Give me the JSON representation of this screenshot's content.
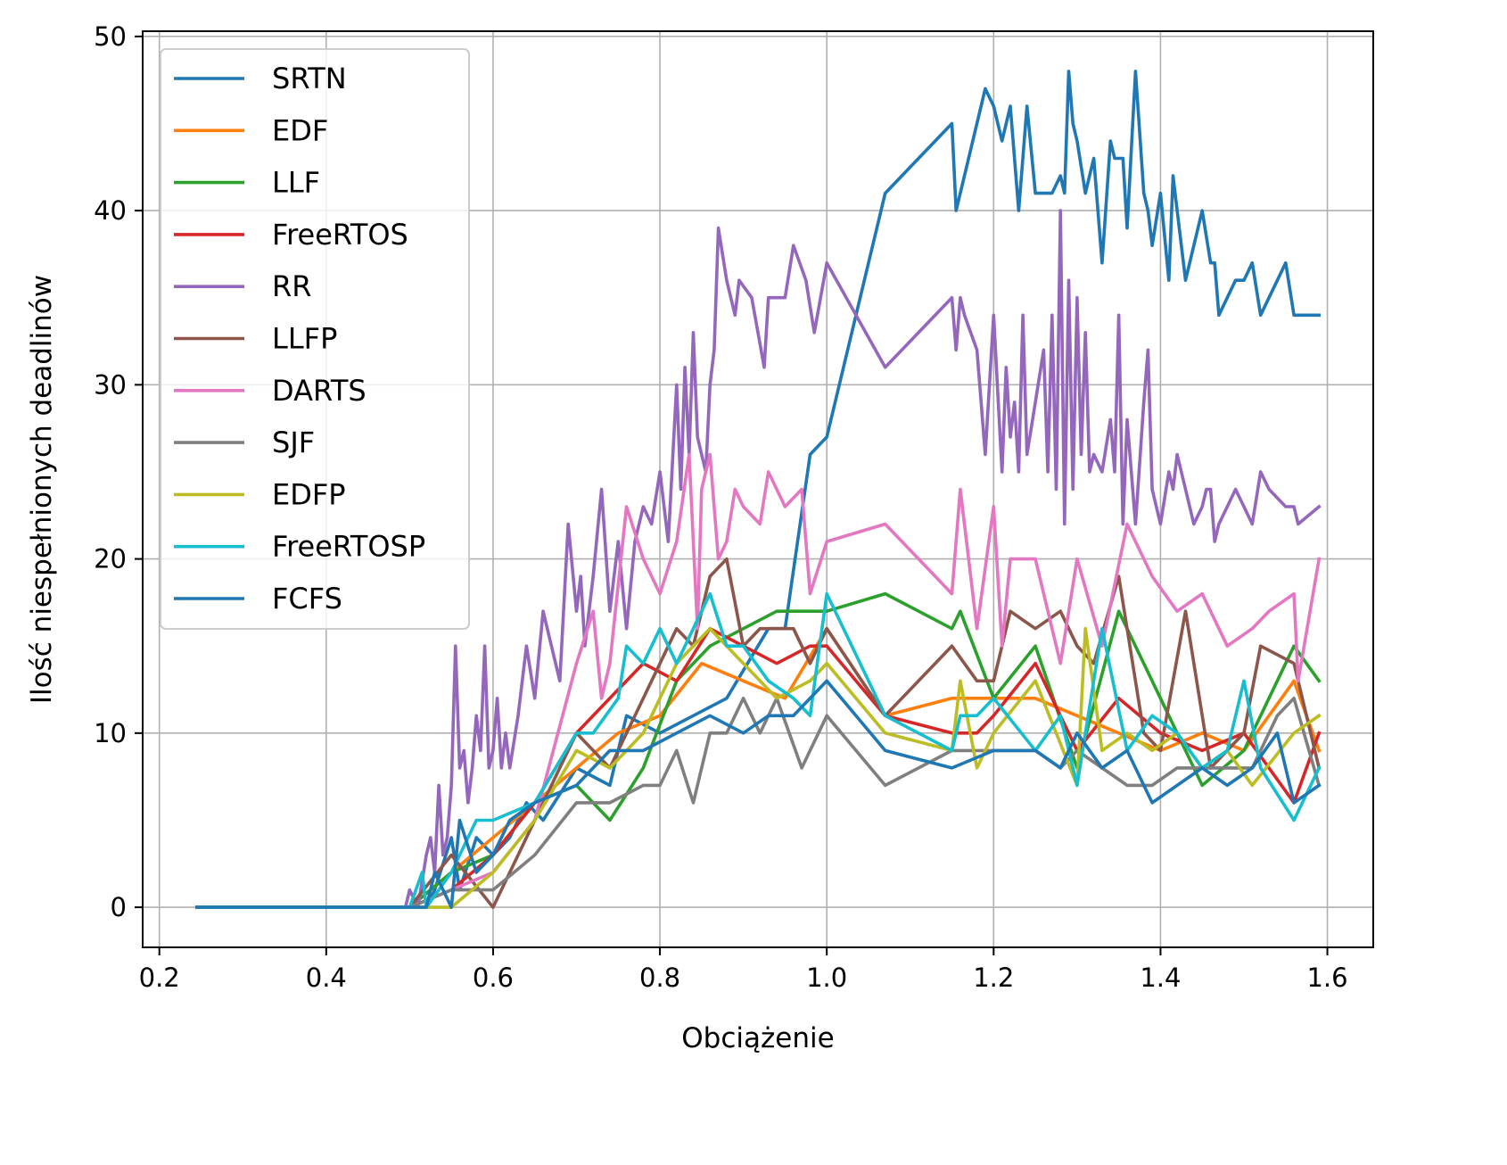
{
  "chart_data": {
    "type": "line",
    "xlabel": "Obciążenie",
    "ylabel": "Ilość niespełnionych deadlinów",
    "xlim": [
      0.18,
      1.655
    ],
    "ylim": [
      -2.3,
      50.3
    ],
    "xticks": [
      0.2,
      0.4,
      0.6,
      0.8,
      1.0,
      1.2,
      1.4,
      1.6
    ],
    "xtick_labels": [
      "0.2",
      "0.4",
      "0.6",
      "0.8",
      "1.0",
      "1.2",
      "1.4",
      "1.6"
    ],
    "yticks": [
      0,
      10,
      20,
      30,
      40,
      50
    ],
    "ytick_labels": [
      "0",
      "10",
      "20",
      "30",
      "40",
      "50"
    ],
    "grid": true,
    "legend_position": "upper-left",
    "series": [
      {
        "name": "SRTN",
        "color": "#1f77b4",
        "x": [
          0.245,
          0.5,
          0.52,
          0.53,
          0.55,
          0.56,
          0.58,
          0.6,
          0.62,
          0.64,
          0.66,
          0.7,
          0.74,
          0.76,
          0.8,
          0.84,
          0.88,
          0.93,
          0.95,
          0.98,
          1.0,
          1.07,
          1.15,
          1.155,
          1.16,
          1.19,
          1.2,
          1.21,
          1.22,
          1.23,
          1.24,
          1.25,
          1.26,
          1.27,
          1.28,
          1.285,
          1.29,
          1.295,
          1.3,
          1.31,
          1.32,
          1.33,
          1.34,
          1.345,
          1.355,
          1.36,
          1.37,
          1.38,
          1.385,
          1.39,
          1.4,
          1.41,
          1.415,
          1.42,
          1.43,
          1.44,
          1.45,
          1.46,
          1.465,
          1.47,
          1.48,
          1.49,
          1.5,
          1.51,
          1.52,
          1.53,
          1.55,
          1.56,
          1.565,
          1.59
        ],
        "y": [
          0,
          0,
          0,
          1,
          4,
          1,
          4,
          3,
          4,
          6,
          5,
          8,
          7,
          11,
          10,
          11,
          12,
          16,
          16,
          26,
          27,
          41,
          45,
          40,
          41,
          47,
          46,
          44,
          46,
          40,
          46,
          41,
          41,
          41,
          42,
          41,
          48,
          45,
          44,
          41,
          43,
          37,
          44,
          43,
          43,
          39,
          48,
          41,
          40,
          38,
          41,
          36,
          42,
          40,
          36,
          38,
          40,
          37,
          37,
          34,
          35,
          36,
          36,
          37,
          34,
          35,
          37,
          34,
          34,
          34
        ]
      },
      {
        "name": "EDF",
        "color": "#ff7f0e",
        "x": [
          0.245,
          0.5,
          0.55,
          0.6,
          0.65,
          0.7,
          0.75,
          0.8,
          0.85,
          0.9,
          0.95,
          1.0,
          1.07,
          1.15,
          1.2,
          1.25,
          1.3,
          1.35,
          1.4,
          1.45,
          1.5,
          1.56,
          1.59
        ],
        "y": [
          0,
          0,
          2,
          4,
          6,
          8,
          10,
          11,
          14,
          13,
          12,
          16,
          11,
          12,
          12,
          12,
          11,
          10,
          9,
          10,
          9,
          13,
          9
        ]
      },
      {
        "name": "LLF",
        "color": "#2ca02c",
        "x": [
          0.245,
          0.5,
          0.55,
          0.6,
          0.65,
          0.7,
          0.74,
          0.78,
          0.82,
          0.86,
          0.9,
          0.94,
          0.98,
          1.0,
          1.07,
          1.15,
          1.16,
          1.2,
          1.25,
          1.3,
          1.35,
          1.4,
          1.45,
          1.5,
          1.56,
          1.59
        ],
        "y": [
          0,
          0,
          2,
          3,
          6,
          7,
          5,
          8,
          13,
          15,
          16,
          17,
          17,
          17,
          18,
          16,
          17,
          12,
          15,
          8,
          17,
          12,
          7,
          9,
          15,
          13
        ]
      },
      {
        "name": "FreeRTOS",
        "color": "#d62728",
        "x": [
          0.245,
          0.5,
          0.55,
          0.6,
          0.65,
          0.7,
          0.74,
          0.78,
          0.82,
          0.86,
          0.9,
          0.94,
          0.98,
          1.0,
          1.07,
          1.15,
          1.18,
          1.2,
          1.25,
          1.3,
          1.35,
          1.4,
          1.45,
          1.5,
          1.56,
          1.59
        ],
        "y": [
          0,
          0,
          1,
          3,
          6,
          10,
          12,
          14,
          13,
          16,
          15,
          14,
          15,
          15,
          11,
          10,
          10,
          11,
          14,
          9,
          12,
          10,
          9,
          10,
          6,
          10
        ]
      },
      {
        "name": "RR",
        "color": "#9467bd",
        "x": [
          0.245,
          0.495,
          0.5,
          0.51,
          0.52,
          0.525,
          0.53,
          0.535,
          0.54,
          0.545,
          0.55,
          0.555,
          0.56,
          0.565,
          0.57,
          0.575,
          0.58,
          0.585,
          0.59,
          0.595,
          0.6,
          0.605,
          0.61,
          0.615,
          0.62,
          0.63,
          0.64,
          0.65,
          0.66,
          0.67,
          0.68,
          0.69,
          0.7,
          0.705,
          0.71,
          0.72,
          0.73,
          0.74,
          0.75,
          0.76,
          0.77,
          0.78,
          0.79,
          0.8,
          0.81,
          0.82,
          0.825,
          0.83,
          0.835,
          0.84,
          0.845,
          0.85,
          0.855,
          0.86,
          0.865,
          0.87,
          0.88,
          0.89,
          0.895,
          0.91,
          0.925,
          0.93,
          0.94,
          0.95,
          0.96,
          0.975,
          0.985,
          1.0,
          1.07,
          1.15,
          1.155,
          1.16,
          1.165,
          1.18,
          1.19,
          1.2,
          1.21,
          1.215,
          1.22,
          1.225,
          1.23,
          1.235,
          1.24,
          1.25,
          1.26,
          1.265,
          1.27,
          1.275,
          1.28,
          1.285,
          1.29,
          1.295,
          1.3,
          1.305,
          1.31,
          1.315,
          1.32,
          1.33,
          1.34,
          1.345,
          1.35,
          1.355,
          1.36,
          1.37,
          1.38,
          1.385,
          1.39,
          1.4,
          1.41,
          1.415,
          1.42,
          1.43,
          1.44,
          1.45,
          1.455,
          1.46,
          1.465,
          1.47,
          1.48,
          1.49,
          1.5,
          1.51,
          1.52,
          1.53,
          1.55,
          1.56,
          1.565,
          1.59
        ],
        "y": [
          0,
          0,
          1,
          0,
          3,
          4,
          2,
          7,
          3,
          4,
          7,
          15,
          8,
          9,
          6,
          8,
          11,
          9,
          15,
          8,
          9,
          12,
          8,
          10,
          8,
          11,
          15,
          12,
          17,
          15,
          13,
          22,
          17,
          19,
          15,
          19,
          24,
          17,
          21,
          16,
          21,
          23,
          22,
          25,
          21,
          30,
          24,
          31,
          26,
          33,
          27,
          26,
          25,
          30,
          32,
          39,
          36,
          34,
          36,
          35,
          31,
          35,
          35,
          35,
          38,
          36,
          33,
          37,
          31,
          35,
          32,
          35,
          34,
          32,
          26,
          34,
          25,
          31,
          27,
          29,
          25,
          34,
          26,
          29,
          32,
          25,
          34,
          24,
          40,
          22,
          36,
          24,
          35,
          26,
          33,
          25,
          26,
          25,
          28,
          25,
          34,
          22,
          28,
          22,
          29,
          32,
          24,
          22,
          25,
          24,
          26,
          24,
          22,
          23,
          24,
          24,
          21,
          22,
          23,
          24,
          23,
          22,
          25,
          24,
          23,
          23,
          22,
          23
        ]
      },
      {
        "name": "LLFP",
        "color": "#8c564b",
        "x": [
          0.245,
          0.5,
          0.55,
          0.6,
          0.61,
          0.65,
          0.7,
          0.74,
          0.78,
          0.82,
          0.84,
          0.86,
          0.88,
          0.9,
          0.92,
          0.94,
          0.96,
          0.98,
          1.0,
          1.07,
          1.15,
          1.18,
          1.2,
          1.22,
          1.25,
          1.28,
          1.3,
          1.32,
          1.35,
          1.38,
          1.4,
          1.43,
          1.46,
          1.5,
          1.52,
          1.56,
          1.59
        ],
        "y": [
          0,
          0,
          3,
          0,
          1,
          5,
          10,
          8,
          12,
          16,
          15,
          19,
          20,
          15,
          16,
          16,
          16,
          14,
          16,
          11,
          15,
          13,
          13,
          17,
          16,
          17,
          15,
          14,
          19,
          10,
          9,
          17,
          8,
          10,
          15,
          14,
          8
        ]
      },
      {
        "name": "DARTS",
        "color": "#e377c2",
        "x": [
          0.245,
          0.5,
          0.55,
          0.6,
          0.65,
          0.7,
          0.72,
          0.73,
          0.74,
          0.76,
          0.78,
          0.8,
          0.82,
          0.835,
          0.845,
          0.85,
          0.86,
          0.87,
          0.88,
          0.89,
          0.9,
          0.92,
          0.93,
          0.95,
          0.97,
          0.98,
          1.0,
          1.07,
          1.15,
          1.16,
          1.18,
          1.2,
          1.21,
          1.22,
          1.25,
          1.28,
          1.3,
          1.33,
          1.36,
          1.39,
          1.42,
          1.45,
          1.48,
          1.51,
          1.53,
          1.56,
          1.565,
          1.59
        ],
        "y": [
          0,
          0,
          1,
          2,
          5,
          14,
          17,
          12,
          14,
          23,
          20,
          18,
          21,
          26,
          16,
          24,
          26,
          20,
          21,
          24,
          23,
          22,
          25,
          23,
          24,
          18,
          21,
          22,
          18,
          24,
          16,
          23,
          15,
          20,
          20,
          14,
          20,
          15,
          22,
          19,
          17,
          18,
          15,
          16,
          17,
          18,
          13,
          20
        ]
      },
      {
        "name": "SJF",
        "color": "#7f7f7f",
        "x": [
          0.245,
          0.5,
          0.55,
          0.6,
          0.65,
          0.7,
          0.74,
          0.78,
          0.8,
          0.82,
          0.84,
          0.86,
          0.88,
          0.9,
          0.92,
          0.94,
          0.97,
          1.0,
          1.07,
          1.15,
          1.2,
          1.25,
          1.28,
          1.3,
          1.33,
          1.36,
          1.39,
          1.42,
          1.45,
          1.48,
          1.51,
          1.54,
          1.56,
          1.59
        ],
        "y": [
          0,
          0,
          1,
          1,
          3,
          6,
          6,
          7,
          7,
          9,
          6,
          10,
          10,
          12,
          10,
          12,
          8,
          11,
          7,
          9,
          9,
          9,
          8,
          9,
          8,
          7,
          7,
          8,
          8,
          8,
          8,
          11,
          12,
          7
        ]
      },
      {
        "name": "EDFP",
        "color": "#bcbd22",
        "x": [
          0.245,
          0.5,
          0.55,
          0.6,
          0.65,
          0.7,
          0.74,
          0.78,
          0.82,
          0.86,
          0.9,
          0.94,
          0.98,
          1.0,
          1.07,
          1.15,
          1.16,
          1.18,
          1.2,
          1.25,
          1.3,
          1.31,
          1.33,
          1.36,
          1.39,
          1.42,
          1.45,
          1.48,
          1.51,
          1.56,
          1.59
        ],
        "y": [
          0,
          0,
          0,
          2,
          5,
          9,
          8,
          10,
          14,
          16,
          14,
          12,
          13,
          14,
          10,
          9,
          13,
          8,
          10,
          13,
          7,
          16,
          9,
          10,
          9,
          10,
          8,
          9,
          7,
          10,
          11
        ]
      },
      {
        "name": "FreeRTOSP",
        "color": "#17becf",
        "x": [
          0.245,
          0.5,
          0.515,
          0.52,
          0.55,
          0.58,
          0.6,
          0.65,
          0.7,
          0.72,
          0.75,
          0.76,
          0.78,
          0.8,
          0.82,
          0.84,
          0.86,
          0.88,
          0.9,
          0.93,
          0.96,
          0.98,
          1.0,
          1.07,
          1.15,
          1.16,
          1.18,
          1.2,
          1.25,
          1.28,
          1.3,
          1.33,
          1.36,
          1.39,
          1.42,
          1.45,
          1.48,
          1.5,
          1.52,
          1.56,
          1.59
        ],
        "y": [
          0,
          0,
          2,
          0,
          2,
          5,
          5,
          6,
          10,
          10,
          12,
          15,
          14,
          16,
          14,
          16,
          18,
          15,
          15,
          13,
          12,
          11,
          18,
          11,
          9,
          11,
          11,
          12,
          9,
          11,
          7,
          16,
          9,
          11,
          10,
          8,
          9,
          13,
          8,
          5,
          8
        ]
      },
      {
        "name": "FCFS",
        "color": "#1f77b4",
        "x": [
          0.245,
          0.5,
          0.52,
          0.53,
          0.55,
          0.56,
          0.58,
          0.6,
          0.62,
          0.65,
          0.7,
          0.74,
          0.78,
          0.82,
          0.86,
          0.9,
          0.93,
          0.96,
          1.0,
          1.07,
          1.15,
          1.2,
          1.25,
          1.28,
          1.3,
          1.33,
          1.36,
          1.39,
          1.42,
          1.45,
          1.48,
          1.51,
          1.54,
          1.56,
          1.59
        ],
        "y": [
          0,
          0,
          0,
          2,
          0,
          5,
          2,
          3,
          5,
          6,
          7,
          9,
          9,
          10,
          11,
          10,
          11,
          11,
          13,
          9,
          8,
          9,
          9,
          8,
          10,
          8,
          9,
          6,
          7,
          8,
          7,
          8,
          10,
          6,
          7
        ]
      }
    ]
  }
}
